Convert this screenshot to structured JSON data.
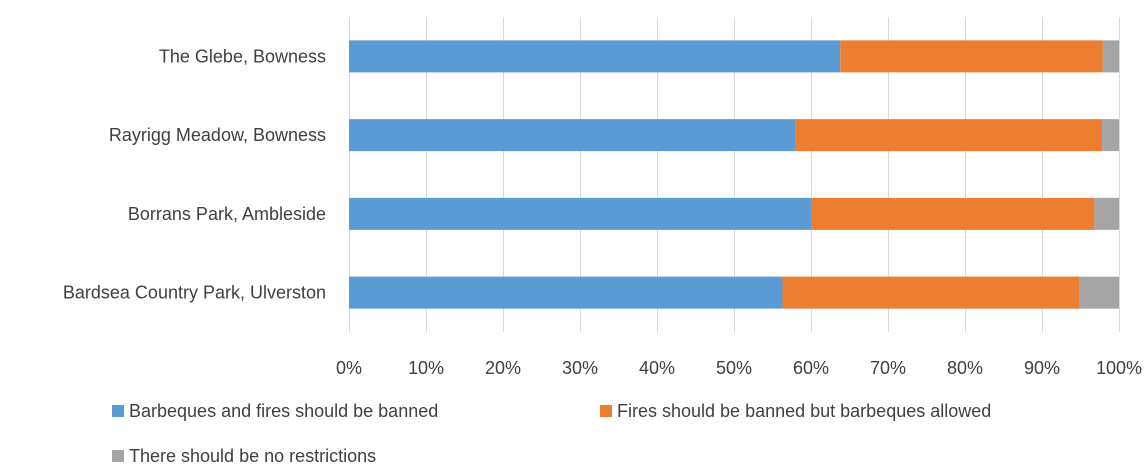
{
  "chart_data": {
    "type": "bar",
    "orientation": "horizontal",
    "stacked": "percent",
    "categories": [
      "The Glebe, Bowness",
      "Rayrigg Meadow, Bowness",
      "Borrans Park, Ambleside",
      "Bardsea Country Park, Ulverston"
    ],
    "series": [
      {
        "name": "Barbeques and fires should be banned",
        "color": "#5B9BD5",
        "values": [
          63.8,
          58.0,
          60.1,
          56.3
        ]
      },
      {
        "name": "Fires should be banned but barbeques allowed",
        "color": "#ED7D31",
        "values": [
          34.1,
          39.8,
          36.7,
          38.6
        ]
      },
      {
        "name": "There should be no restrictions",
        "color": "#A5A5A5",
        "values": [
          2.1,
          2.2,
          3.2,
          5.1
        ]
      }
    ],
    "xlim": [
      0,
      100
    ],
    "x_ticks": [
      "0%",
      "10%",
      "20%",
      "30%",
      "40%",
      "50%",
      "60%",
      "70%",
      "80%",
      "90%",
      "100%"
    ],
    "grid": "vertical",
    "legend_position": "bottom",
    "title": "",
    "xlabel": "",
    "ylabel": ""
  }
}
